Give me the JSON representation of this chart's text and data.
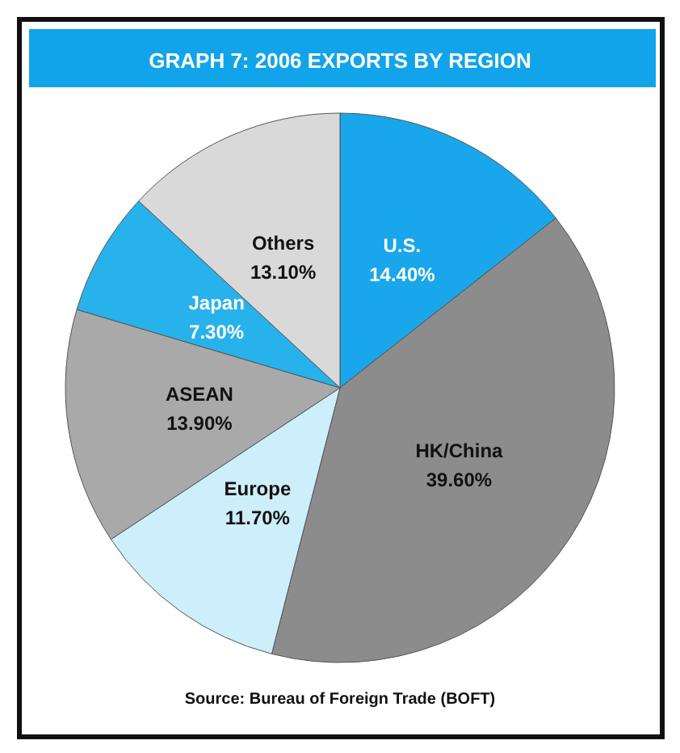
{
  "chart_data": {
    "type": "pie",
    "title": "GRAPH 7: 2006 EXPORTS BY REGION",
    "categories": [
      "U.S.",
      "HK/China",
      "Europe",
      "ASEAN",
      "Japan",
      "Others"
    ],
    "values": [
      14.4,
      39.6,
      11.7,
      13.9,
      7.3,
      13.1
    ],
    "value_labels": [
      "14.40%",
      "39.60%",
      "11.70%",
      "13.90%",
      "7.30%",
      "13.10%"
    ],
    "colors": [
      "#19a6ea",
      "#8c8c8c",
      "#cdeefb",
      "#a9a9a9",
      "#27b2ec",
      "#d9d9d9"
    ],
    "annotations": [
      "Source: Bureau of Foreign Trade (BOFT)"
    ],
    "legend": false
  }
}
